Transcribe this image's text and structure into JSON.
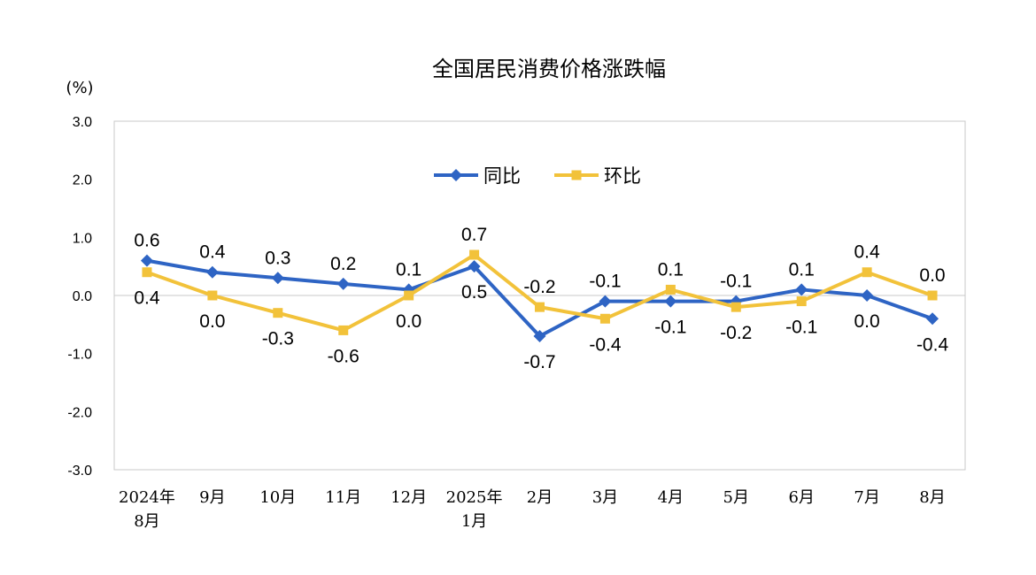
{
  "chart_data": {
    "type": "line",
    "title": "全国居民消费价格涨跌幅",
    "unit_label": "(%)",
    "categories": [
      [
        "2024年",
        "8月"
      ],
      [
        "9月"
      ],
      [
        "10月"
      ],
      [
        "11月"
      ],
      [
        "12月"
      ],
      [
        "2025年",
        "1月"
      ],
      [
        "2月"
      ],
      [
        "3月"
      ],
      [
        "4月"
      ],
      [
        "5月"
      ],
      [
        "6月"
      ],
      [
        "7月"
      ],
      [
        "8月"
      ]
    ],
    "ylim": [
      -3.0,
      3.0
    ],
    "yticks": [
      "3.0",
      "2.0",
      "1.0",
      "0.0",
      "-1.0",
      "-2.0",
      "-3.0"
    ],
    "ytick_values": [
      3,
      2,
      1,
      0,
      -1,
      -2,
      -3
    ],
    "grid": false,
    "legend_position": "top-center",
    "series": [
      {
        "name": "同比",
        "color": "#2E64C4",
        "marker": "diamond",
        "values": [
          0.6,
          0.4,
          0.3,
          0.2,
          0.1,
          0.5,
          -0.7,
          -0.1,
          -0.1,
          -0.1,
          0.1,
          0.0,
          -0.4
        ],
        "labels": [
          "0.6",
          "0.4",
          "0.3",
          "0.2",
          "0.1",
          "0.5",
          "-0.7",
          "-0.1",
          "-0.1",
          "-0.1",
          "0.1",
          "0.0",
          "-0.4"
        ]
      },
      {
        "name": "环比",
        "color": "#F2C23A",
        "marker": "square",
        "values": [
          0.4,
          0.0,
          -0.3,
          -0.6,
          0.0,
          0.7,
          -0.2,
          -0.4,
          0.1,
          -0.2,
          -0.1,
          0.4,
          0.0
        ],
        "labels": [
          "0.4",
          "0.0",
          "-0.3",
          "-0.6",
          "0.0",
          "0.7",
          "-0.2",
          "-0.4",
          "0.1",
          "-0.2",
          "-0.1",
          "0.4",
          "0.0"
        ]
      }
    ]
  }
}
